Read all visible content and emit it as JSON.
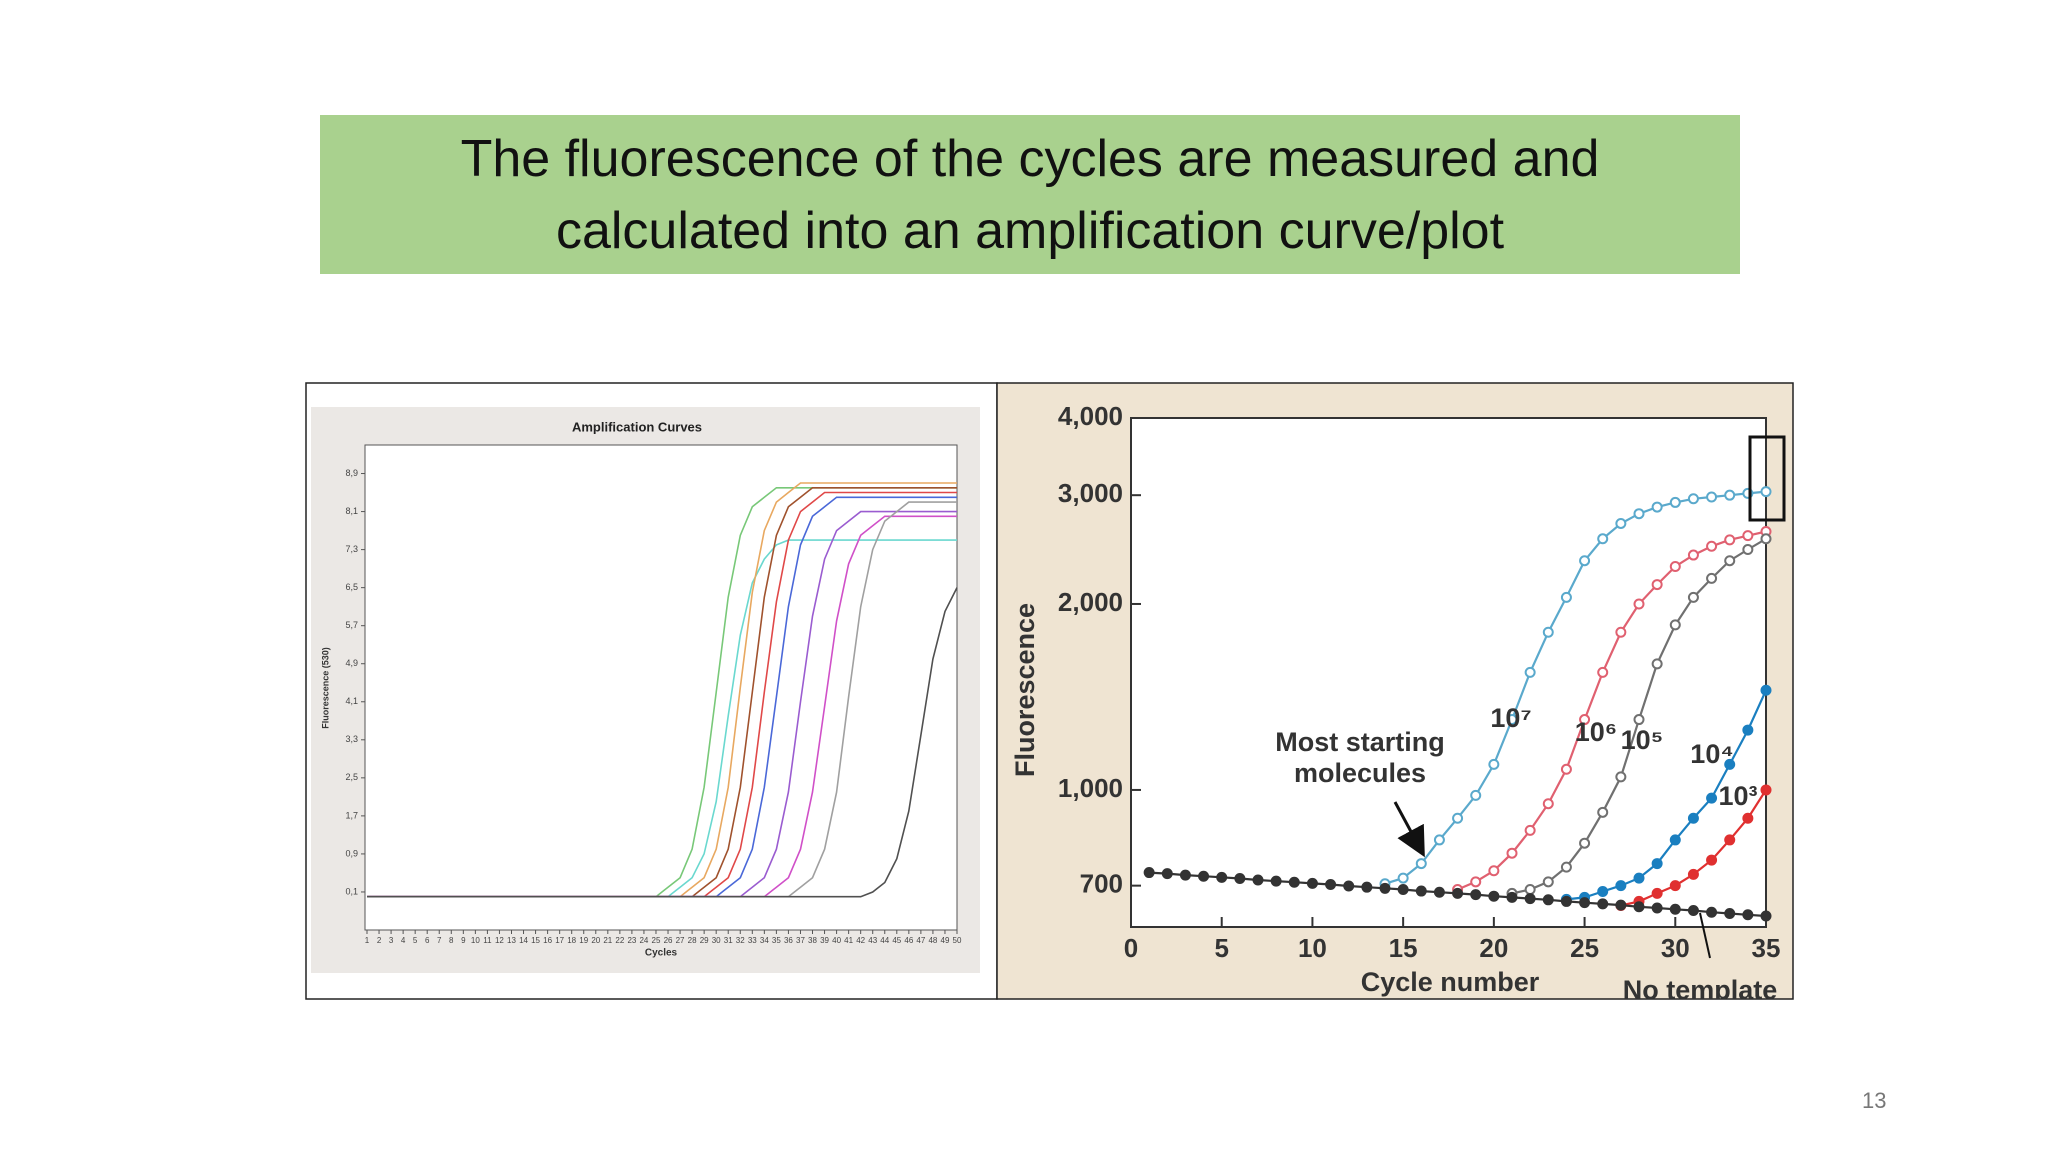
{
  "title": "The fluorescence of the cycles are measured and calculated into an amplification curve/plot",
  "page_number": "13",
  "chart_data": [
    {
      "type": "line",
      "title": "Amplification Curves",
      "x_label": "Cycles",
      "y_label": "Fluorescence (530)",
      "x": [
        1,
        2,
        3,
        4,
        5,
        6,
        7,
        8,
        9,
        10,
        11,
        12,
        13,
        14,
        15,
        16,
        17,
        18,
        19,
        20,
        21,
        22,
        23,
        24,
        25,
        26,
        27,
        28,
        29,
        30,
        31,
        32,
        33,
        34,
        35,
        36,
        37,
        38,
        39,
        40,
        41,
        42,
        43,
        44,
        45,
        46,
        47,
        48,
        49,
        50
      ],
      "xlim": [
        1,
        50
      ],
      "xticks": [
        1,
        2,
        3,
        4,
        5,
        6,
        7,
        8,
        9,
        10,
        11,
        12,
        13,
        14,
        15,
        16,
        17,
        18,
        19,
        20,
        21,
        22,
        23,
        24,
        25,
        26,
        27,
        28,
        29,
        30,
        31,
        32,
        33,
        34,
        35,
        36,
        37,
        38,
        39,
        40,
        41,
        42,
        43,
        44,
        45,
        46,
        47,
        48,
        49,
        50
      ],
      "ylim": [
        -0.7,
        9.5
      ],
      "yticks": [
        {
          "value": 0.1,
          "label": "0,1"
        },
        {
          "value": 0.9,
          "label": "0,9"
        },
        {
          "value": 1.7,
          "label": "1,7"
        },
        {
          "value": 2.5,
          "label": "2,5"
        },
        {
          "value": 3.3,
          "label": "3,3"
        },
        {
          "value": 4.1,
          "label": "4,1"
        },
        {
          "value": 4.9,
          "label": "4,9"
        },
        {
          "value": 5.7,
          "label": "5,7"
        },
        {
          "value": 6.5,
          "label": "6,5"
        },
        {
          "value": 7.3,
          "label": "7,3"
        },
        {
          "value": 8.1,
          "label": "8,1"
        },
        {
          "value": 8.9,
          "label": "8,9"
        }
      ],
      "series": [
        {
          "color": "#6ad8cf",
          "values": [
            0,
            0,
            0,
            0,
            0,
            0,
            0,
            0,
            0,
            0,
            0,
            0,
            0,
            0,
            0,
            0,
            0,
            0,
            0,
            0,
            0,
            0,
            0,
            0,
            0,
            0,
            0.2,
            0.4,
            0.9,
            2.0,
            3.8,
            5.5,
            6.6,
            7.1,
            7.4,
            7.5,
            7.5,
            7.5,
            7.5,
            7.5,
            7.5,
            7.5,
            7.5,
            7.5,
            7.5,
            7.5,
            7.5,
            7.5,
            7.5,
            7.5
          ]
        },
        {
          "color": "#78c878",
          "values": [
            0,
            0,
            0,
            0,
            0,
            0,
            0,
            0,
            0,
            0,
            0,
            0,
            0,
            0,
            0,
            0,
            0,
            0,
            0,
            0,
            0,
            0,
            0,
            0,
            0,
            0.2,
            0.4,
            1.0,
            2.3,
            4.3,
            6.3,
            7.6,
            8.2,
            8.4,
            8.6,
            8.6,
            8.6,
            8.6,
            8.6,
            8.6,
            8.6,
            8.6,
            8.6,
            8.6,
            8.6,
            8.6,
            8.6,
            8.6,
            8.6,
            8.6
          ]
        },
        {
          "color": "#e8a860",
          "values": [
            0,
            0,
            0,
            0,
            0,
            0,
            0,
            0,
            0,
            0,
            0,
            0,
            0,
            0,
            0,
            0,
            0,
            0,
            0,
            0,
            0,
            0,
            0,
            0,
            0,
            0,
            0,
            0.2,
            0.4,
            1.0,
            2.3,
            4.4,
            6.4,
            7.7,
            8.3,
            8.5,
            8.7,
            8.7,
            8.7,
            8.7,
            8.7,
            8.7,
            8.7,
            8.7,
            8.7,
            8.7,
            8.7,
            8.7,
            8.7,
            8.7
          ]
        },
        {
          "color": "#a0522d",
          "values": [
            0,
            0,
            0,
            0,
            0,
            0,
            0,
            0,
            0,
            0,
            0,
            0,
            0,
            0,
            0,
            0,
            0,
            0,
            0,
            0,
            0,
            0,
            0,
            0,
            0,
            0,
            0,
            0,
            0.2,
            0.4,
            1.0,
            2.3,
            4.3,
            6.3,
            7.6,
            8.2,
            8.4,
            8.6,
            8.6,
            8.6,
            8.6,
            8.6,
            8.6,
            8.6,
            8.6,
            8.6,
            8.6,
            8.6,
            8.6,
            8.6
          ]
        },
        {
          "color": "#e04848",
          "values": [
            0,
            0,
            0,
            0,
            0,
            0,
            0,
            0,
            0,
            0,
            0,
            0,
            0,
            0,
            0,
            0,
            0,
            0,
            0,
            0,
            0,
            0,
            0,
            0,
            0,
            0,
            0,
            0,
            0,
            0.2,
            0.4,
            1.0,
            2.3,
            4.3,
            6.2,
            7.5,
            8.1,
            8.3,
            8.5,
            8.5,
            8.5,
            8.5,
            8.5,
            8.5,
            8.5,
            8.5,
            8.5,
            8.5,
            8.5,
            8.5
          ]
        },
        {
          "color": "#4a68d8",
          "values": [
            0,
            0,
            0,
            0,
            0,
            0,
            0,
            0,
            0,
            0,
            0,
            0,
            0,
            0,
            0,
            0,
            0,
            0,
            0,
            0,
            0,
            0,
            0,
            0,
            0,
            0,
            0,
            0,
            0,
            0,
            0.2,
            0.4,
            1.0,
            2.3,
            4.2,
            6.1,
            7.4,
            8.0,
            8.2,
            8.4,
            8.4,
            8.4,
            8.4,
            8.4,
            8.4,
            8.4,
            8.4,
            8.4,
            8.4,
            8.4
          ]
        },
        {
          "color": "#9a5cd0",
          "values": [
            0,
            0,
            0,
            0,
            0,
            0,
            0,
            0,
            0,
            0,
            0,
            0,
            0,
            0,
            0,
            0,
            0,
            0,
            0,
            0,
            0,
            0,
            0,
            0,
            0,
            0,
            0,
            0,
            0,
            0,
            0,
            0,
            0.2,
            0.4,
            1.0,
            2.2,
            4.1,
            5.9,
            7.1,
            7.7,
            7.9,
            8.1,
            8.1,
            8.1,
            8.1,
            8.1,
            8.1,
            8.1,
            8.1,
            8.1
          ]
        },
        {
          "color": "#d050c8",
          "values": [
            0,
            0,
            0,
            0,
            0,
            0,
            0,
            0,
            0,
            0,
            0,
            0,
            0,
            0,
            0,
            0,
            0,
            0,
            0,
            0,
            0,
            0,
            0,
            0,
            0,
            0,
            0,
            0,
            0,
            0,
            0,
            0,
            0,
            0,
            0.2,
            0.4,
            1.0,
            2.2,
            4.0,
            5.8,
            7.0,
            7.6,
            7.8,
            8.0,
            8.0,
            8.0,
            8.0,
            8.0,
            8.0,
            8.0
          ]
        },
        {
          "color": "#a0a0a0",
          "values": [
            0,
            0,
            0,
            0,
            0,
            0,
            0,
            0,
            0,
            0,
            0,
            0,
            0,
            0,
            0,
            0,
            0,
            0,
            0,
            0,
            0,
            0,
            0,
            0,
            0,
            0,
            0,
            0,
            0,
            0,
            0,
            0,
            0,
            0,
            0,
            0,
            0.2,
            0.4,
            1.0,
            2.2,
            4.2,
            6.1,
            7.3,
            7.9,
            8.1,
            8.3,
            8.3,
            8.3,
            8.3,
            8.3
          ]
        },
        {
          "color": "#505050",
          "values": [
            0,
            0,
            0,
            0,
            0,
            0,
            0,
            0,
            0,
            0,
            0,
            0,
            0,
            0,
            0,
            0,
            0,
            0,
            0,
            0,
            0,
            0,
            0,
            0,
            0,
            0,
            0,
            0,
            0,
            0,
            0,
            0,
            0,
            0,
            0,
            0,
            0,
            0,
            0,
            0,
            0,
            0,
            0.1,
            0.3,
            0.8,
            1.8,
            3.4,
            5.0,
            6.0,
            6.5
          ]
        }
      ]
    },
    {
      "type": "line",
      "x_label": "Cycle number",
      "y_label": "Fluorescence",
      "log_y": true,
      "annotation": [
        "Most starting",
        "molecules"
      ],
      "x": [
        1,
        2,
        3,
        4,
        5,
        6,
        7,
        8,
        9,
        10,
        11,
        12,
        13,
        14,
        15,
        16,
        17,
        18,
        19,
        20,
        21,
        22,
        23,
        24,
        25,
        26,
        27,
        28,
        29,
        30,
        31,
        32,
        33,
        34,
        35
      ],
      "xlim": [
        0,
        35
      ],
      "xticks": [
        0,
        5,
        10,
        15,
        20,
        25,
        30,
        35
      ],
      "ylim": [
        600,
        4000
      ],
      "yticks": [
        700,
        {
          "value": 1000,
          "label": "1,000"
        },
        {
          "value": 2000,
          "label": "2,000"
        },
        {
          "value": 3000,
          "label": "3,000"
        },
        {
          "value": 4000,
          "label": "4,000"
        }
      ],
      "series": [
        {
          "name": "10⁷",
          "color": "#5aa9cc",
          "marker": "open",
          "values": [
            null,
            null,
            null,
            null,
            null,
            null,
            null,
            null,
            null,
            null,
            null,
            null,
            null,
            705,
            720,
            760,
            830,
            900,
            980,
            1100,
            1300,
            1550,
            1800,
            2050,
            2350,
            2550,
            2700,
            2800,
            2870,
            2920,
            2960,
            2980,
            3000,
            3020,
            3040
          ]
        },
        {
          "name": "10⁶",
          "color": "#e06070",
          "marker": "open",
          "values": [
            null,
            null,
            null,
            null,
            null,
            null,
            null,
            null,
            null,
            null,
            null,
            null,
            null,
            null,
            null,
            null,
            null,
            690,
            710,
            740,
            790,
            860,
            950,
            1080,
            1300,
            1550,
            1800,
            2000,
            2150,
            2300,
            2400,
            2480,
            2540,
            2580,
            2620
          ]
        },
        {
          "name": "10⁵",
          "color": "#707070",
          "marker": "open",
          "values": [
            null,
            null,
            null,
            null,
            null,
            null,
            null,
            null,
            null,
            null,
            null,
            null,
            null,
            null,
            null,
            null,
            null,
            null,
            null,
            null,
            680,
            690,
            710,
            750,
            820,
            920,
            1050,
            1300,
            1600,
            1850,
            2050,
            2200,
            2350,
            2450,
            2550
          ]
        },
        {
          "name": "10⁴",
          "color": "#1a7fc0",
          "marker": "filled",
          "values": [
            null,
            null,
            null,
            null,
            null,
            null,
            null,
            null,
            null,
            null,
            null,
            null,
            null,
            null,
            null,
            null,
            null,
            null,
            null,
            null,
            null,
            null,
            null,
            665,
            670,
            685,
            700,
            720,
            760,
            830,
            900,
            970,
            1100,
            1250,
            1450
          ]
        },
        {
          "name": "10³",
          "color": "#e03030",
          "marker": "filled",
          "values": [
            null,
            null,
            null,
            null,
            null,
            null,
            null,
            null,
            null,
            null,
            null,
            null,
            null,
            null,
            null,
            null,
            null,
            null,
            null,
            null,
            null,
            null,
            null,
            null,
            null,
            null,
            650,
            660,
            680,
            700,
            730,
            770,
            830,
            900,
            1000
          ]
        },
        {
          "name": "No template",
          "color": "#333333",
          "marker": "filled",
          "values": [
            735,
            732,
            728,
            725,
            722,
            719,
            715,
            712,
            709,
            706,
            703,
            699,
            696,
            693,
            690,
            686,
            683,
            680,
            677,
            673,
            670,
            667,
            664,
            660,
            657,
            654,
            651,
            647,
            644,
            641,
            638,
            634,
            631,
            628,
            625
          ]
        }
      ]
    }
  ]
}
